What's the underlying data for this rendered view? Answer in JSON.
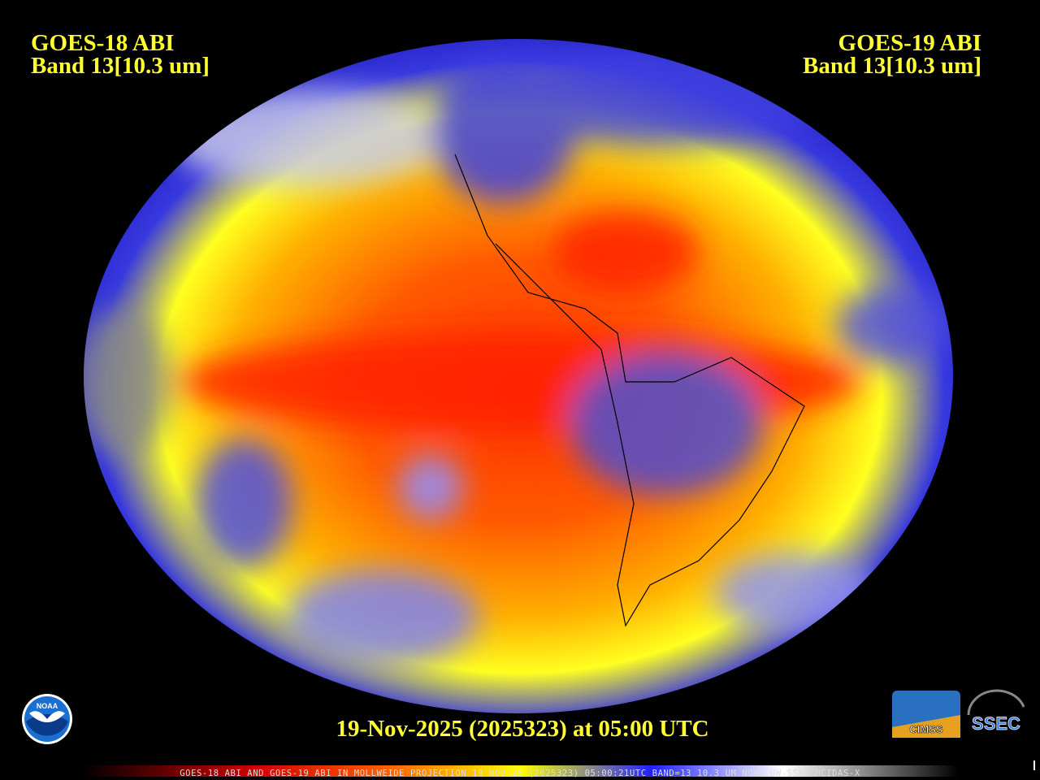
{
  "header": {
    "left": {
      "satellite": "GOES-18 ABI",
      "band": "Band 13[10.3 um]"
    },
    "right": {
      "satellite": "GOES-19 ABI",
      "band": "Band 13[10.3 um]"
    }
  },
  "timestamp": "19-Nov-2025 (2025323) at 05:00 UTC",
  "logos": {
    "noaa": "NOAA",
    "cimss": "CIMSS",
    "ssec": "SSEC"
  },
  "footer": "GOES-18 ABI AND GOES-19 ABI IN MOLLWEIDE PROJECTION 19 NOV 25 (2025323) 05:00:21UTC BAND=13 10.3 UM NOAA UW-SSEC MCIDAS-X"
}
